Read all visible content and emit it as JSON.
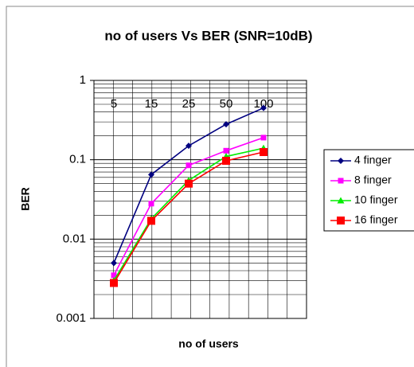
{
  "chart_data": {
    "type": "line",
    "title": "no of users Vs BER (SNR=10dB)",
    "x_label": "no of users",
    "y_label": "BER",
    "categories": [
      "5",
      "15",
      "25",
      "50",
      "100"
    ],
    "series": [
      {
        "name": "4 finger",
        "color": "#000080",
        "marker": "diamond",
        "values": [
          0.005,
          0.065,
          0.15,
          0.28,
          0.45
        ]
      },
      {
        "name": "8 finger",
        "color": "#ff00ff",
        "marker": "square",
        "values": [
          0.0035,
          0.028,
          0.085,
          0.13,
          0.19
        ]
      },
      {
        "name": "10 finger",
        "color": "#00ee00",
        "marker": "triangle",
        "values": [
          0.003,
          0.018,
          0.055,
          0.11,
          0.14
        ]
      },
      {
        "name": "16 finger",
        "color": "#ff0000",
        "marker": "bigsquare",
        "values": [
          0.0028,
          0.017,
          0.05,
          0.097,
          0.125
        ]
      }
    ],
    "ylim": [
      0.001,
      1
    ],
    "yticks": [
      1,
      0.1,
      0.01,
      0.001
    ],
    "log_y": true,
    "grid": true,
    "legend": "right"
  }
}
